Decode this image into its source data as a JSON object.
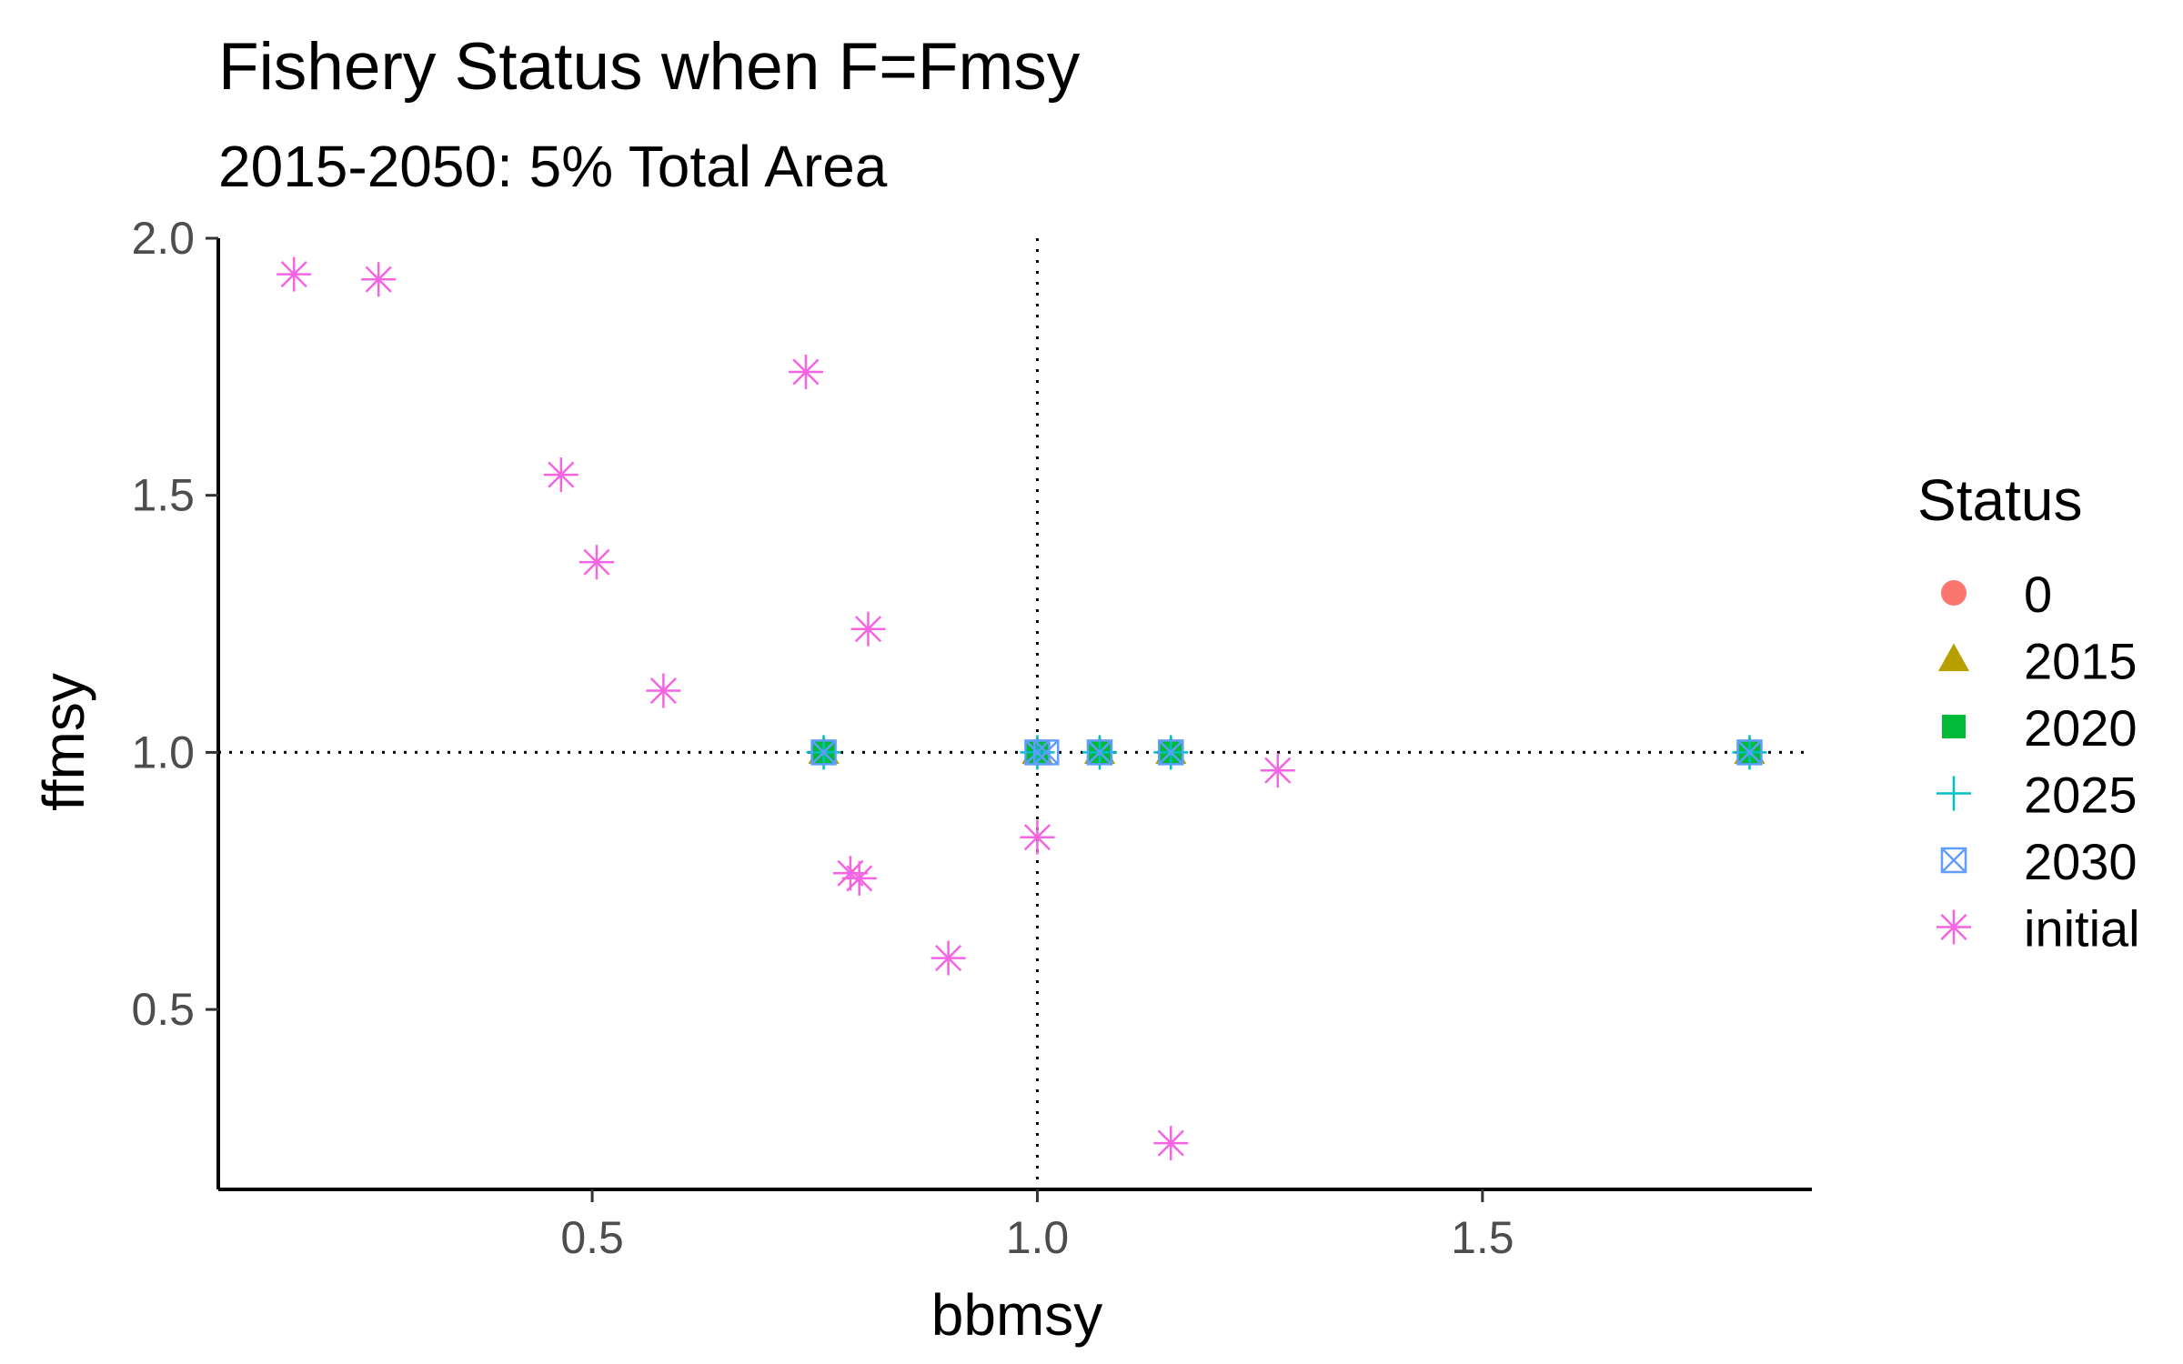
{
  "chart_data": {
    "type": "scatter",
    "title": "Fishery Status when F=Fmsy",
    "subtitle": "2015-2050: 5% Total Area",
    "xlabel": "bbmsy",
    "ylabel": "ffmsy",
    "xlim": [
      0.08,
      1.87
    ],
    "ylim": [
      0.15,
      2.0
    ],
    "x_ticks": [
      0.5,
      1.0,
      1.5
    ],
    "x_tick_labels": [
      "0.5",
      "1.0",
      "1.5"
    ],
    "y_ticks": [
      0.5,
      1.0,
      1.5,
      2.0
    ],
    "y_tick_labels": [
      "0.5",
      "1.0",
      "1.5",
      "2.0"
    ],
    "reference_lines": {
      "x": 1.0,
      "y": 1.0,
      "style": "dotted"
    },
    "grid": false,
    "legend": {
      "title": "Status",
      "placement": "right"
    },
    "series": [
      {
        "name": "0",
        "marker": "circle-icon",
        "color": "#F8766D",
        "points": [
          [
            0.76,
            1.0
          ],
          [
            1.0,
            1.0
          ],
          [
            1.07,
            1.0
          ],
          [
            1.15,
            1.0
          ],
          [
            1.8,
            1.0
          ]
        ]
      },
      {
        "name": "2015",
        "marker": "triangle-icon",
        "color": "#B79F00",
        "points": [
          [
            0.76,
            1.0
          ],
          [
            1.0,
            1.0
          ],
          [
            1.07,
            1.0
          ],
          [
            1.15,
            1.0
          ],
          [
            1.8,
            1.0
          ]
        ]
      },
      {
        "name": "2020",
        "marker": "square-icon",
        "color": "#00BA38",
        "points": [
          [
            0.76,
            1.0
          ],
          [
            1.0,
            1.0
          ],
          [
            1.07,
            1.0
          ],
          [
            1.15,
            1.0
          ],
          [
            1.8,
            1.0
          ]
        ]
      },
      {
        "name": "2025",
        "marker": "plus-icon",
        "color": "#00BFC4",
        "points": [
          [
            0.76,
            1.0
          ],
          [
            1.0,
            1.0
          ],
          [
            1.07,
            1.0
          ],
          [
            1.15,
            1.0
          ],
          [
            1.8,
            1.0
          ]
        ]
      },
      {
        "name": "2030",
        "marker": "square-cross-icon",
        "color": "#619CFF",
        "points": [
          [
            0.76,
            1.0
          ],
          [
            1.0,
            1.0
          ],
          [
            1.01,
            1.0
          ],
          [
            1.07,
            1.0
          ],
          [
            1.15,
            1.0
          ],
          [
            1.8,
            1.0
          ]
        ]
      },
      {
        "name": "initial",
        "marker": "asterisk-icon",
        "color": "#F564E3",
        "points": [
          [
            0.165,
            1.93
          ],
          [
            0.26,
            1.92
          ],
          [
            0.74,
            1.74
          ],
          [
            0.465,
            1.54
          ],
          [
            0.505,
            1.37
          ],
          [
            0.81,
            1.24
          ],
          [
            0.58,
            1.12
          ],
          [
            1.27,
            0.965
          ],
          [
            1.0,
            0.835
          ],
          [
            0.79,
            0.765
          ],
          [
            0.8,
            0.755
          ],
          [
            0.9,
            0.6
          ],
          [
            1.15,
            0.24
          ]
        ]
      }
    ]
  }
}
